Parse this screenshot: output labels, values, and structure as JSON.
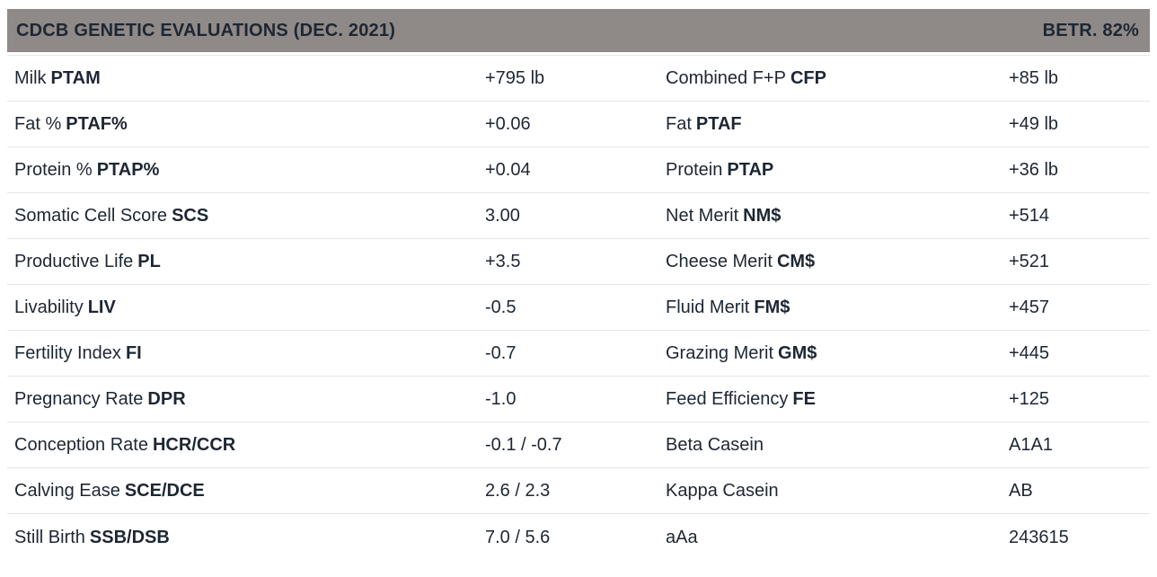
{
  "header": {
    "title": "CDCB GENETIC EVALUATIONS (DEC. 2021)",
    "reliability": "BETR. 82%"
  },
  "colors": {
    "header_bg": "#8f8987",
    "text": "#1d2733",
    "separator": "#e3e6e9",
    "row_bg": "#ffffff"
  },
  "rows": [
    {
      "left": {
        "label": "Milk",
        "abbr": "PTAM",
        "value": "+795 lb"
      },
      "right": {
        "label": "Combined F+P",
        "abbr": "CFP",
        "value": "+85 lb"
      }
    },
    {
      "left": {
        "label": "Fat %",
        "abbr": "PTAF%",
        "value": "+0.06"
      },
      "right": {
        "label": "Fat",
        "abbr": "PTAF",
        "value": "+49 lb"
      }
    },
    {
      "left": {
        "label": "Protein %",
        "abbr": "PTAP%",
        "value": "+0.04"
      },
      "right": {
        "label": "Protein",
        "abbr": "PTAP",
        "value": "+36 lb"
      }
    },
    {
      "left": {
        "label": "Somatic Cell Score",
        "abbr": "SCS",
        "value": "3.00"
      },
      "right": {
        "label": "Net Merit",
        "abbr": "NM$",
        "value": "+514"
      }
    },
    {
      "left": {
        "label": "Productive Life",
        "abbr": "PL",
        "value": "+3.5"
      },
      "right": {
        "label": "Cheese Merit",
        "abbr": "CM$",
        "value": "+521"
      }
    },
    {
      "left": {
        "label": "Livability",
        "abbr": "LIV",
        "value": "-0.5"
      },
      "right": {
        "label": "Fluid Merit",
        "abbr": "FM$",
        "value": "+457"
      }
    },
    {
      "left": {
        "label": "Fertility Index",
        "abbr": "FI",
        "value": "-0.7"
      },
      "right": {
        "label": "Grazing Merit",
        "abbr": "GM$",
        "value": "+445"
      }
    },
    {
      "left": {
        "label": "Pregnancy Rate",
        "abbr": "DPR",
        "value": "-1.0"
      },
      "right": {
        "label": "Feed Efficiency",
        "abbr": "FE",
        "value": "+125"
      }
    },
    {
      "left": {
        "label": "Conception Rate",
        "abbr": "HCR/CCR",
        "value": "-0.1 / -0.7"
      },
      "right": {
        "label": "Beta Casein",
        "abbr": "",
        "value": "A1A1"
      }
    },
    {
      "left": {
        "label": "Calving Ease",
        "abbr": "SCE/DCE",
        "value": "2.6 / 2.3"
      },
      "right": {
        "label": "Kappa Casein",
        "abbr": "",
        "value": "AB"
      }
    },
    {
      "left": {
        "label": "Still Birth",
        "abbr": "SSB/DSB",
        "value": "7.0 / 5.6"
      },
      "right": {
        "label": "aAa",
        "abbr": "",
        "value": "243615"
      }
    }
  ]
}
